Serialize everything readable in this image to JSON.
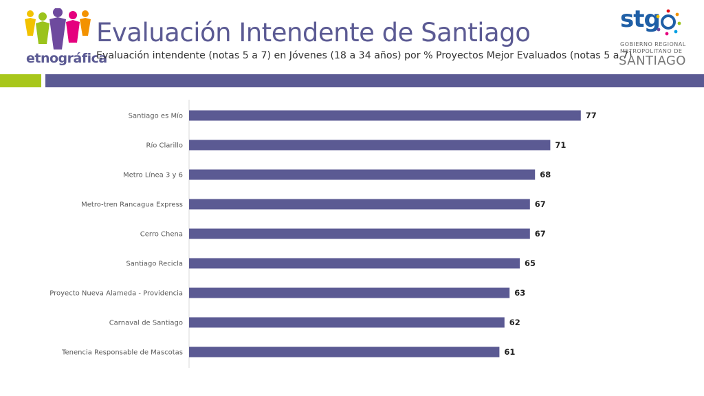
{
  "header": {
    "title": "Evaluación Intendente de Santiago",
    "subtitle": "Evaluación intendente (notas 5 a 7) en Jóvenes (18 a 34 años) por % Proyectos Mejor Evaluados (notas 5 a 7)",
    "logo_left": "etnográfica",
    "logo_right": {
      "brand": "stg",
      "line1": "GOBIERNO REGIONAL",
      "line2": "METROPOLITANO DE",
      "line3": "SANTIAGO"
    }
  },
  "colors": {
    "bar": "#5b5a93",
    "band_green": "#a8c71b",
    "band_purple": "#5b5a93"
  },
  "chart_data": {
    "type": "bar",
    "orientation": "horizontal",
    "categories": [
      "Santiago es Mío",
      "Río Clarillo",
      "Metro Línea 3 y 6",
      "Metro-tren Rancagua Express",
      "Cerro Chena",
      "Santiago Recicla",
      "Proyecto Nueva Alameda - Providencia",
      "Carnaval de Santiago",
      "Tenencia Responsable de Mascotas"
    ],
    "values": [
      77,
      71,
      68,
      67,
      67,
      65,
      63,
      62,
      61
    ],
    "xlim": [
      0,
      90
    ],
    "grid": false,
    "data_labels": true
  }
}
